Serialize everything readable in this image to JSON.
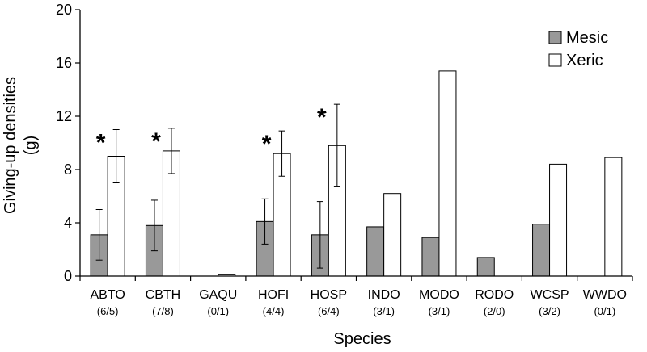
{
  "chart_data": {
    "type": "bar",
    "categories": [
      "ABTO",
      "CBTH",
      "GAQU",
      "HOFI",
      "HOSP",
      "INDO",
      "MODO",
      "RODO",
      "WCSP",
      "WWDO"
    ],
    "sample_sizes": [
      "(6/5)",
      "(7/8)",
      "(0/1)",
      "(4/4)",
      "(6/4)",
      "(3/1)",
      "(3/1)",
      "(2/0)",
      "(3/2)",
      "(0/1)"
    ],
    "series": [
      {
        "name": "Mesic",
        "color": "#999999",
        "values": [
          3.1,
          3.8,
          null,
          4.1,
          3.1,
          3.7,
          2.9,
          1.4,
          3.9,
          null
        ],
        "error": [
          1.9,
          1.9,
          null,
          1.7,
          2.5,
          null,
          null,
          null,
          null,
          null
        ]
      },
      {
        "name": "Xeric",
        "color": "#ffffff",
        "values": [
          9.0,
          9.4,
          0.1,
          9.2,
          9.8,
          6.2,
          15.4,
          null,
          8.4,
          8.9
        ],
        "error": [
          2.0,
          1.7,
          null,
          1.7,
          3.1,
          null,
          null,
          null,
          null,
          null
        ]
      }
    ],
    "significance": [
      "*",
      "*",
      "",
      "*",
      "*",
      "",
      "",
      "",
      "",
      ""
    ],
    "ylabel": "Giving-up densities (g)",
    "ylabel_lines": [
      "Giving-up densities",
      "(g)"
    ],
    "xlabel": "Species",
    "ylim": [
      0,
      20
    ],
    "yticks": [
      "0",
      "4",
      "8",
      "12",
      "16",
      "20"
    ],
    "ytick_values": [
      0,
      4,
      8,
      12,
      16,
      20
    ],
    "legend_position": "top-right",
    "grid": false
  }
}
